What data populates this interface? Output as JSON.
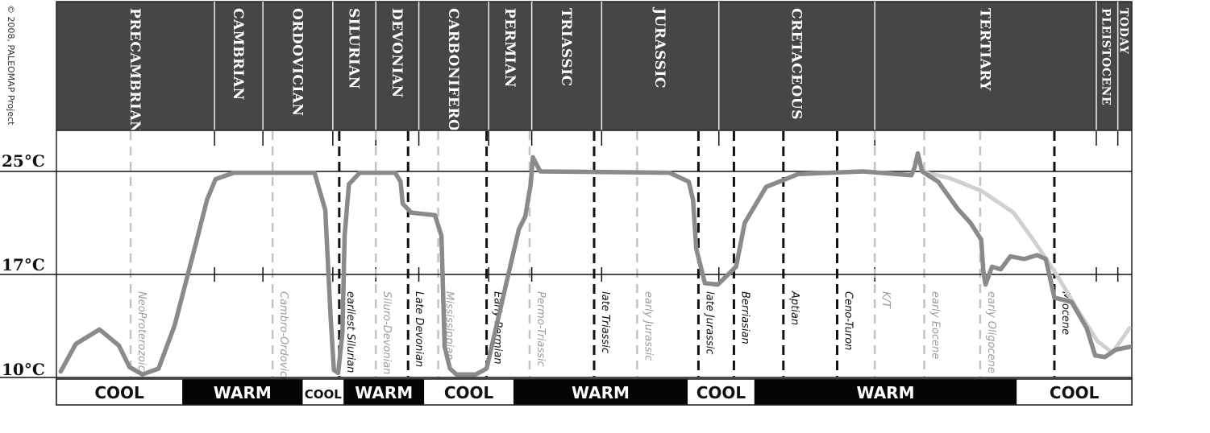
{
  "copyright": "© 2008, PALEOMAP Project",
  "chart_data": {
    "type": "line",
    "ylabels": [
      "25°C",
      "17°C",
      "10°C"
    ],
    "periods": [
      {
        "label": "PRECAMBRIAN",
        "start": 0,
        "end": 0.147
      },
      {
        "label": "CAMBRIAN",
        "start": 0.147,
        "end": 0.192
      },
      {
        "label": "ORDOVICIAN",
        "start": 0.192,
        "end": 0.257
      },
      {
        "label": "SILURIAN",
        "start": 0.257,
        "end": 0.297
      },
      {
        "label": "DEVONIAN",
        "start": 0.297,
        "end": 0.337
      },
      {
        "label": "CARBONIFEROUS",
        "start": 0.337,
        "end": 0.402
      },
      {
        "label": "PERMIAN",
        "start": 0.402,
        "end": 0.442
      },
      {
        "label": "TRIASSIC",
        "start": 0.442,
        "end": 0.507
      },
      {
        "label": "JURASSIC",
        "start": 0.507,
        "end": 0.616
      },
      {
        "label": "CRETACEOUS",
        "start": 0.616,
        "end": 0.761
      },
      {
        "label": "TERTIARY",
        "start": 0.761,
        "end": 0.967
      },
      {
        "label": "PLEISTOCENE",
        "start": 0.967,
        "end": 0.987
      },
      {
        "label": "TODAY",
        "start": 0.987,
        "end": 1
      }
    ],
    "events": [
      {
        "label": "NeoProterozoic",
        "x": 0.069,
        "style": "gray-dashed"
      },
      {
        "label": "Cambro-Ordovician",
        "x": 0.201,
        "style": "gray-dashed"
      },
      {
        "label": "earliest Silurian",
        "x": 0.263,
        "style": "black-dashed"
      },
      {
        "label": "Siluro-Devonian",
        "x": 0.297,
        "style": "gray-dashed"
      },
      {
        "label": "Late Devonian",
        "x": 0.327,
        "style": "black-dashed"
      },
      {
        "label": "Mississippian",
        "x": 0.355,
        "style": "gray-dashed"
      },
      {
        "label": "Early Permian",
        "x": 0.4,
        "style": "black-dashed"
      },
      {
        "label": "Permo-Triassic",
        "x": 0.44,
        "style": "gray-dashed"
      },
      {
        "label": "late Triassic",
        "x": 0.5,
        "style": "black-dashed"
      },
      {
        "label": "early Jurassic",
        "x": 0.54,
        "style": "gray-dashed"
      },
      {
        "label": "late Jurassic",
        "x": 0.597,
        "style": "black-dashed"
      },
      {
        "label": "Berriasian",
        "x": 0.63,
        "style": "black-dashed"
      },
      {
        "label": "Aptian",
        "x": 0.676,
        "style": "black-dashed"
      },
      {
        "label": "Ceno-Turon",
        "x": 0.726,
        "style": "black-dashed"
      },
      {
        "label": "K/T",
        "x": 0.761,
        "style": "gray-dashed"
      },
      {
        "label": "early Eocene",
        "x": 0.807,
        "style": "gray-dashed"
      },
      {
        "label": "early Oligocene",
        "x": 0.859,
        "style": "gray-dashed"
      },
      {
        "label": "Miocene",
        "x": 0.928,
        "style": "black-dashed"
      }
    ],
    "phases": [
      {
        "label": "COOL",
        "start": 0,
        "end": 0.117,
        "dark": false
      },
      {
        "label": "WARM",
        "start": 0.117,
        "end": 0.229,
        "dark": true
      },
      {
        "label": "COOL",
        "start": 0.229,
        "end": 0.267,
        "dark": false
      },
      {
        "label": "WARM",
        "start": 0.267,
        "end": 0.342,
        "dark": true
      },
      {
        "label": "COOL",
        "start": 0.342,
        "end": 0.425,
        "dark": false
      },
      {
        "label": "WARM",
        "start": 0.425,
        "end": 0.587,
        "dark": true
      },
      {
        "label": "COOL",
        "start": 0.587,
        "end": 0.649,
        "dark": false
      },
      {
        "label": "WARM",
        "start": 0.649,
        "end": 0.893,
        "dark": true
      },
      {
        "label": "COOL",
        "start": 0.893,
        "end": 1,
        "dark": false
      }
    ],
    "curve": [
      [
        0.004,
        10.3
      ],
      [
        0.018,
        12.2
      ],
      [
        0.04,
        13.2
      ],
      [
        0.058,
        12.1
      ],
      [
        0.068,
        10.6
      ],
      [
        0.08,
        10.1
      ],
      [
        0.095,
        10.5
      ],
      [
        0.11,
        13.5
      ],
      [
        0.13,
        19.5
      ],
      [
        0.14,
        22.8
      ],
      [
        0.148,
        24.4
      ],
      [
        0.165,
        24.9
      ],
      [
        0.24,
        24.9
      ],
      [
        0.25,
        22
      ],
      [
        0.255,
        14
      ],
      [
        0.258,
        10.4
      ],
      [
        0.262,
        10.2
      ],
      [
        0.266,
        13
      ],
      [
        0.268,
        20
      ],
      [
        0.272,
        24
      ],
      [
        0.282,
        24.9
      ],
      [
        0.315,
        24.9
      ],
      [
        0.32,
        24.2
      ],
      [
        0.322,
        22.5
      ],
      [
        0.33,
        21.8
      ],
      [
        0.352,
        21.6
      ],
      [
        0.358,
        20
      ],
      [
        0.361,
        12
      ],
      [
        0.366,
        10.5
      ],
      [
        0.372,
        10.1
      ],
      [
        0.39,
        10.1
      ],
      [
        0.4,
        10.5
      ],
      [
        0.414,
        15
      ],
      [
        0.43,
        20.5
      ],
      [
        0.436,
        21.5
      ],
      [
        0.441,
        24
      ],
      [
        0.443,
        26.1
      ],
      [
        0.448,
        25.3
      ],
      [
        0.45,
        25
      ],
      [
        0.57,
        24.9
      ],
      [
        0.588,
        24.2
      ],
      [
        0.592,
        22.8
      ],
      [
        0.595,
        19
      ],
      [
        0.603,
        16.4
      ],
      [
        0.615,
        16.3
      ],
      [
        0.632,
        17.6
      ],
      [
        0.64,
        21
      ],
      [
        0.66,
        23.8
      ],
      [
        0.69,
        24.8
      ],
      [
        0.75,
        25
      ],
      [
        0.795,
        24.7
      ],
      [
        0.798,
        25.3
      ],
      [
        0.801,
        26.4
      ],
      [
        0.805,
        25
      ],
      [
        0.82,
        24.2
      ],
      [
        0.838,
        22.1
      ],
      [
        0.85,
        21
      ],
      [
        0.86,
        19.7
      ],
      [
        0.862,
        17.2
      ],
      [
        0.864,
        16.3
      ],
      [
        0.87,
        17.6
      ],
      [
        0.878,
        17.4
      ],
      [
        0.887,
        18.4
      ],
      [
        0.9,
        18.2
      ],
      [
        0.912,
        18.5
      ],
      [
        0.92,
        18.2
      ],
      [
        0.928,
        15.4
      ],
      [
        0.944,
        15.1
      ],
      [
        0.958,
        13.3
      ],
      [
        0.966,
        11.4
      ],
      [
        0.975,
        11.3
      ],
      [
        0.985,
        11.8
      ],
      [
        0.998,
        12
      ]
    ],
    "future_curve": [
      [
        0.808,
        24.9
      ],
      [
        0.83,
        24.5
      ],
      [
        0.86,
        23.5
      ],
      [
        0.89,
        21.8
      ],
      [
        0.91,
        19.5
      ],
      [
        0.93,
        17
      ],
      [
        0.95,
        14.5
      ],
      [
        0.968,
        12.4
      ],
      [
        0.982,
        11.6
      ],
      [
        0.998,
        13.3
      ]
    ]
  }
}
